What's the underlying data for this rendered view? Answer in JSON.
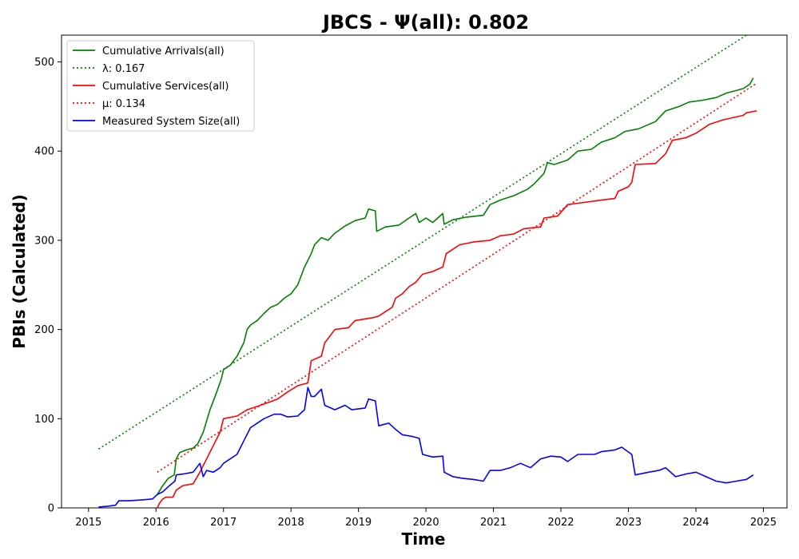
{
  "chart_data": {
    "type": "line",
    "title": "JBCS -  Ψ(all): 0.802",
    "xlabel": "Time",
    "ylabel": "PBIs (Calculated)",
    "xlim": [
      2014.6,
      2025.35
    ],
    "ylim": [
      0,
      530
    ],
    "x_ticks": [
      "2015",
      "2016",
      "2017",
      "2018",
      "2019",
      "2020",
      "2021",
      "2022",
      "2023",
      "2024",
      "2025"
    ],
    "y_ticks": [
      "0",
      "100",
      "200",
      "300",
      "400",
      "500"
    ],
    "legend_position": "top-left",
    "grid": false,
    "series": [
      {
        "name": "Cumulative Arrivals(all)",
        "color": "#008000",
        "dash": "solid",
        "points": [
          [
            2016.02,
            15
          ],
          [
            2016.1,
            25
          ],
          [
            2016.18,
            33
          ],
          [
            2016.27,
            37
          ],
          [
            2016.3,
            55
          ],
          [
            2016.35,
            62
          ],
          [
            2016.45,
            65
          ],
          [
            2016.55,
            67
          ],
          [
            2016.62,
            72
          ],
          [
            2016.7,
            85
          ],
          [
            2016.8,
            110
          ],
          [
            2016.9,
            130
          ],
          [
            2016.97,
            145
          ],
          [
            2017.0,
            155
          ],
          [
            2017.1,
            160
          ],
          [
            2017.2,
            170
          ],
          [
            2017.3,
            185
          ],
          [
            2017.35,
            200
          ],
          [
            2017.4,
            205
          ],
          [
            2017.5,
            210
          ],
          [
            2017.6,
            218
          ],
          [
            2017.7,
            225
          ],
          [
            2017.8,
            228
          ],
          [
            2017.9,
            235
          ],
          [
            2018.0,
            240
          ],
          [
            2018.1,
            250
          ],
          [
            2018.2,
            270
          ],
          [
            2018.3,
            285
          ],
          [
            2018.35,
            295
          ],
          [
            2018.45,
            303
          ],
          [
            2018.55,
            300
          ],
          [
            2018.65,
            308
          ],
          [
            2018.8,
            316
          ],
          [
            2018.95,
            322
          ],
          [
            2019.1,
            325
          ],
          [
            2019.15,
            335
          ],
          [
            2019.25,
            333
          ],
          [
            2019.27,
            310
          ],
          [
            2019.4,
            315
          ],
          [
            2019.6,
            317
          ],
          [
            2019.75,
            325
          ],
          [
            2019.85,
            330
          ],
          [
            2019.9,
            320
          ],
          [
            2020.0,
            325
          ],
          [
            2020.1,
            320
          ],
          [
            2020.25,
            330
          ],
          [
            2020.27,
            318
          ],
          [
            2020.4,
            323
          ],
          [
            2020.6,
            326
          ],
          [
            2020.85,
            328
          ],
          [
            2020.95,
            340
          ],
          [
            2021.1,
            345
          ],
          [
            2021.3,
            350
          ],
          [
            2021.5,
            357
          ],
          [
            2021.6,
            363
          ],
          [
            2021.75,
            375
          ],
          [
            2021.8,
            387
          ],
          [
            2021.9,
            385
          ],
          [
            2022.1,
            390
          ],
          [
            2022.25,
            400
          ],
          [
            2022.45,
            402
          ],
          [
            2022.6,
            410
          ],
          [
            2022.8,
            415
          ],
          [
            2022.95,
            422
          ],
          [
            2023.15,
            425
          ],
          [
            2023.4,
            433
          ],
          [
            2023.55,
            445
          ],
          [
            2023.75,
            450
          ],
          [
            2023.9,
            455
          ],
          [
            2024.1,
            457
          ],
          [
            2024.3,
            460
          ],
          [
            2024.45,
            465
          ],
          [
            2024.7,
            470
          ],
          [
            2024.8,
            475
          ],
          [
            2024.85,
            482
          ]
        ]
      },
      {
        "name": "λ: 0.167",
        "color": "#008000",
        "dash": "dotted",
        "points": [
          [
            2015.15,
            66
          ],
          [
            2024.75,
            530
          ]
        ]
      },
      {
        "name": "Cumulative Services(all)",
        "color": "#ff0000",
        "dash": "solid",
        "points": [
          [
            2016.02,
            0
          ],
          [
            2016.05,
            5
          ],
          [
            2016.1,
            10
          ],
          [
            2016.15,
            12
          ],
          [
            2016.25,
            12
          ],
          [
            2016.3,
            20
          ],
          [
            2016.4,
            25
          ],
          [
            2016.55,
            27
          ],
          [
            2016.65,
            40
          ],
          [
            2016.75,
            55
          ],
          [
            2016.85,
            70
          ],
          [
            2016.95,
            85
          ],
          [
            2017.0,
            100
          ],
          [
            2017.2,
            103
          ],
          [
            2017.35,
            110
          ],
          [
            2017.55,
            115
          ],
          [
            2017.8,
            122
          ],
          [
            2017.95,
            130
          ],
          [
            2018.1,
            137
          ],
          [
            2018.25,
            140
          ],
          [
            2018.3,
            165
          ],
          [
            2018.45,
            170
          ],
          [
            2018.5,
            185
          ],
          [
            2018.6,
            195
          ],
          [
            2018.65,
            200
          ],
          [
            2018.85,
            202
          ],
          [
            2018.95,
            210
          ],
          [
            2019.2,
            213
          ],
          [
            2019.3,
            215
          ],
          [
            2019.4,
            220
          ],
          [
            2019.5,
            225
          ],
          [
            2019.55,
            235
          ],
          [
            2019.65,
            240
          ],
          [
            2019.75,
            248
          ],
          [
            2019.85,
            253
          ],
          [
            2019.95,
            262
          ],
          [
            2020.1,
            265
          ],
          [
            2020.25,
            270
          ],
          [
            2020.3,
            285
          ],
          [
            2020.4,
            290
          ],
          [
            2020.5,
            295
          ],
          [
            2020.7,
            298
          ],
          [
            2020.95,
            300
          ],
          [
            2021.1,
            305
          ],
          [
            2021.3,
            307
          ],
          [
            2021.45,
            313
          ],
          [
            2021.7,
            315
          ],
          [
            2021.75,
            325
          ],
          [
            2021.95,
            327
          ],
          [
            2022.1,
            340
          ],
          [
            2022.3,
            342
          ],
          [
            2022.6,
            345
          ],
          [
            2022.8,
            347
          ],
          [
            2022.85,
            355
          ],
          [
            2023.0,
            360
          ],
          [
            2023.05,
            365
          ],
          [
            2023.1,
            385
          ],
          [
            2023.4,
            386
          ],
          [
            2023.55,
            397
          ],
          [
            2023.65,
            412
          ],
          [
            2023.85,
            415
          ],
          [
            2024.0,
            420
          ],
          [
            2024.2,
            430
          ],
          [
            2024.4,
            435
          ],
          [
            2024.7,
            440
          ],
          [
            2024.75,
            443
          ],
          [
            2024.9,
            445
          ]
        ]
      },
      {
        "name": "μ: 0.134",
        "color": "#ff0000",
        "dash": "dotted",
        "points": [
          [
            2016.02,
            40
          ],
          [
            2024.88,
            475
          ]
        ]
      },
      {
        "name": "Measured System Size(all)",
        "color": "#0000ff",
        "dash": "solid",
        "points": [
          [
            2015.15,
            1
          ],
          [
            2015.3,
            2
          ],
          [
            2015.4,
            3
          ],
          [
            2015.45,
            8
          ],
          [
            2015.6,
            8
          ],
          [
            2015.8,
            9
          ],
          [
            2015.95,
            10
          ],
          [
            2016.02,
            15
          ],
          [
            2016.1,
            18
          ],
          [
            2016.2,
            25
          ],
          [
            2016.28,
            30
          ],
          [
            2016.3,
            37
          ],
          [
            2016.4,
            38
          ],
          [
            2016.55,
            40
          ],
          [
            2016.65,
            50
          ],
          [
            2016.7,
            35
          ],
          [
            2016.75,
            42
          ],
          [
            2016.85,
            40
          ],
          [
            2016.95,
            45
          ],
          [
            2017.0,
            50
          ],
          [
            2017.1,
            55
          ],
          [
            2017.2,
            60
          ],
          [
            2017.3,
            75
          ],
          [
            2017.4,
            90
          ],
          [
            2017.5,
            95
          ],
          [
            2017.6,
            100
          ],
          [
            2017.75,
            105
          ],
          [
            2017.85,
            105
          ],
          [
            2017.95,
            102
          ],
          [
            2018.1,
            103
          ],
          [
            2018.2,
            110
          ],
          [
            2018.25,
            135
          ],
          [
            2018.3,
            125
          ],
          [
            2018.35,
            125
          ],
          [
            2018.45,
            133
          ],
          [
            2018.5,
            115
          ],
          [
            2018.65,
            110
          ],
          [
            2018.8,
            115
          ],
          [
            2018.9,
            110
          ],
          [
            2019.1,
            112
          ],
          [
            2019.15,
            122
          ],
          [
            2019.25,
            120
          ],
          [
            2019.3,
            92
          ],
          [
            2019.45,
            95
          ],
          [
            2019.55,
            88
          ],
          [
            2019.65,
            82
          ],
          [
            2019.8,
            80
          ],
          [
            2019.9,
            78
          ],
          [
            2019.95,
            60
          ],
          [
            2020.1,
            57
          ],
          [
            2020.25,
            58
          ],
          [
            2020.27,
            40
          ],
          [
            2020.4,
            35
          ],
          [
            2020.55,
            33
          ],
          [
            2020.7,
            32
          ],
          [
            2020.85,
            30
          ],
          [
            2020.95,
            42
          ],
          [
            2021.1,
            42
          ],
          [
            2021.25,
            45
          ],
          [
            2021.4,
            50
          ],
          [
            2021.55,
            45
          ],
          [
            2021.7,
            55
          ],
          [
            2021.85,
            58
          ],
          [
            2022.0,
            57
          ],
          [
            2022.1,
            52
          ],
          [
            2022.25,
            60
          ],
          [
            2022.5,
            60
          ],
          [
            2022.6,
            63
          ],
          [
            2022.8,
            65
          ],
          [
            2022.9,
            68
          ],
          [
            2023.05,
            60
          ],
          [
            2023.1,
            37
          ],
          [
            2023.3,
            40
          ],
          [
            2023.45,
            42
          ],
          [
            2023.55,
            45
          ],
          [
            2023.7,
            35
          ],
          [
            2023.85,
            38
          ],
          [
            2024.0,
            40
          ],
          [
            2024.15,
            35
          ],
          [
            2024.3,
            30
          ],
          [
            2024.45,
            28
          ],
          [
            2024.6,
            30
          ],
          [
            2024.75,
            32
          ],
          [
            2024.85,
            37
          ]
        ]
      }
    ]
  }
}
